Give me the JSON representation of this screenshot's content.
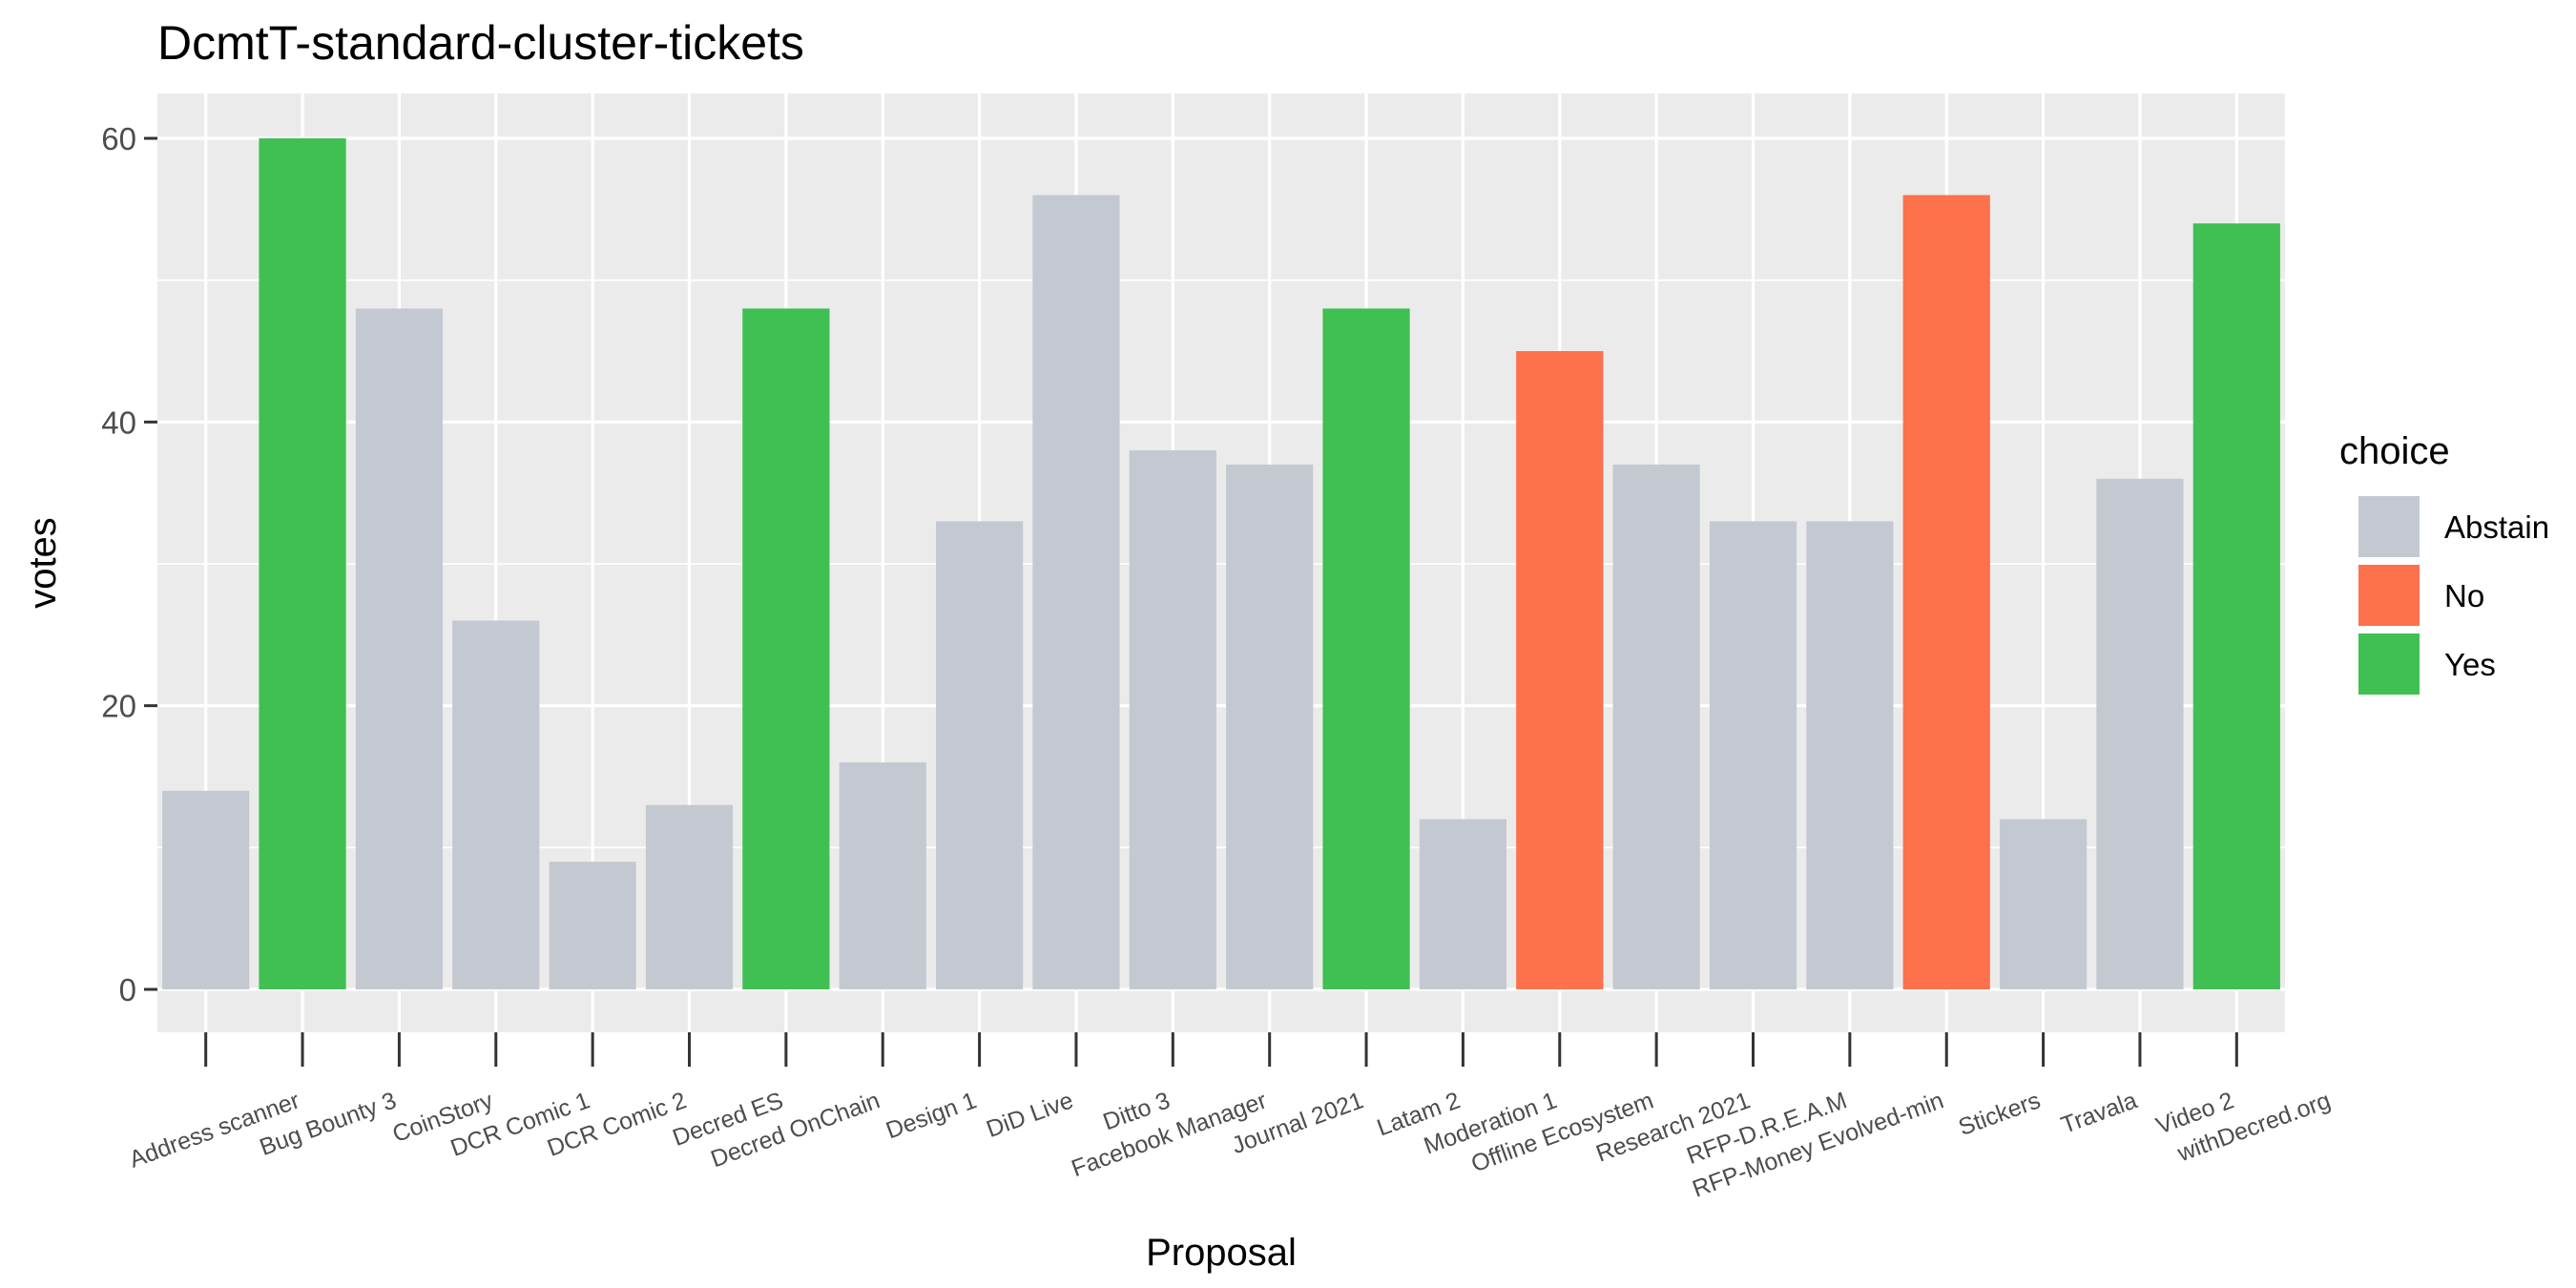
{
  "chart_data": {
    "type": "bar",
    "title": "DcmtT-standard-cluster-tickets",
    "xlabel": "Proposal",
    "ylabel": "votes",
    "ylim": [
      0,
      63
    ],
    "yticks": [
      0,
      20,
      40,
      60
    ],
    "grid": true,
    "legend": {
      "title": "choice",
      "position": "right",
      "entries": [
        {
          "name": "Abstain",
          "color": "#c4c9d1"
        },
        {
          "name": "No",
          "color": "#fd714c"
        },
        {
          "name": "Yes",
          "color": "#40bf52"
        }
      ]
    },
    "categories": [
      "Address scanner",
      "Bug Bounty 3",
      "CoinStory",
      "DCR Comic 1",
      "DCR Comic 2",
      "Decred ES",
      "Decred OnChain",
      "Design 1",
      "DiD Live",
      "Ditto 3",
      "Facebook Manager",
      "Journal 2021",
      "Latam 2",
      "Moderation 1",
      "Offline Ecosystem",
      "Research 2021",
      "RFP-D.R.E.A.M",
      "RFP-Money Evolved-min",
      "Stickers",
      "Travala",
      "Video 2",
      "withDecred.org"
    ],
    "values": [
      14,
      60,
      48,
      26,
      9,
      13,
      48,
      16,
      33,
      56,
      38,
      37,
      48,
      12,
      45,
      37,
      33,
      33,
      56,
      12,
      36,
      54
    ],
    "choices": [
      "Abstain",
      "Yes",
      "Abstain",
      "Abstain",
      "Abstain",
      "Abstain",
      "Yes",
      "Abstain",
      "Abstain",
      "Abstain",
      "Abstain",
      "Abstain",
      "Yes",
      "Abstain",
      "No",
      "Abstain",
      "Abstain",
      "Abstain",
      "No",
      "Abstain",
      "Abstain",
      "Yes"
    ],
    "colors": {
      "panel": "#ebebeb",
      "grid": "#ffffff",
      "tick": "#333333"
    }
  }
}
